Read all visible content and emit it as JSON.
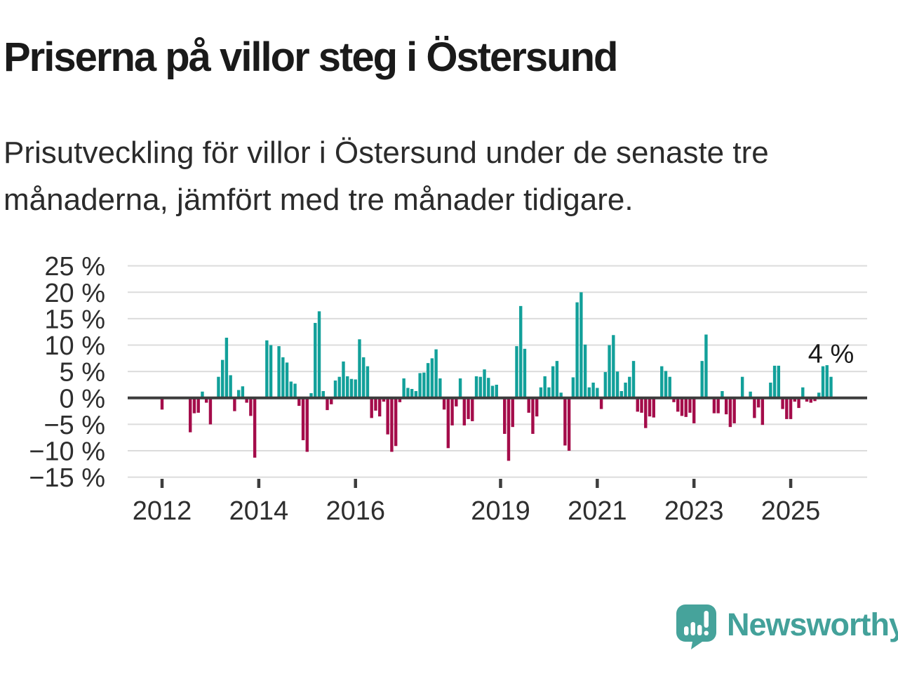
{
  "header": {
    "title": "Priserna på villor steg i Östersund",
    "subtitle": "Prisutveckling för villor i Östersund under de senaste tre\nmånaderna, jämfört med tre månader tidigare."
  },
  "chart_data": {
    "type": "bar",
    "unit": "%",
    "x_monthly_start": "2012-01",
    "x_monthly_end": "2025-11",
    "ylim": [
      -15,
      25
    ],
    "grid": true,
    "yticks": [
      25,
      20,
      15,
      10,
      5,
      0,
      -5,
      -10,
      -15
    ],
    "ytick_labels": [
      "25 %",
      "20 %",
      "15 %",
      "10 %",
      "5 %",
      "0 %",
      "−5 %",
      "−10 %",
      "−15 %"
    ],
    "xticks": [
      {
        "label": "2012",
        "index": 0
      },
      {
        "label": "2014",
        "index": 24
      },
      {
        "label": "2016",
        "index": 48
      },
      {
        "label": "2019",
        "index": 84
      },
      {
        "label": "2021",
        "index": 108
      },
      {
        "label": "2023",
        "index": 132
      },
      {
        "label": "2025",
        "index": 156
      }
    ],
    "annotation": {
      "text": "4 %",
      "index": 166,
      "value": 4
    },
    "colors": {
      "positive": "#12a09a",
      "negative": "#a40c4a",
      "grid": "#dcdcdc",
      "axis": "#3d3d3d",
      "tick_text": "#2e2e2e"
    },
    "values": [
      -2.2,
      0,
      0,
      0,
      0,
      0,
      0,
      -6.5,
      -2.9,
      -2.8,
      1.2,
      -0.9,
      -5.0,
      0,
      4.0,
      7.2,
      11.4,
      4.3,
      -2.5,
      1.5,
      2.2,
      -0.9,
      -3.4,
      -11.3,
      0,
      0,
      10.9,
      10.0,
      0,
      9.8,
      7.7,
      6.7,
      3.1,
      2.7,
      -1.5,
      -8.0,
      -10.2,
      0.9,
      14.2,
      16.4,
      1.3,
      -2.3,
      -1.2,
      3.3,
      4.0,
      6.9,
      4.1,
      3.6,
      3.5,
      11.1,
      7.7,
      6.0,
      -3.8,
      -2.4,
      -3.5,
      -0.7,
      -6.9,
      -10.2,
      -9.1,
      -0.8,
      3.7,
      1.9,
      1.7,
      1.3,
      4.7,
      4.8,
      6.6,
      7.5,
      9.2,
      3.7,
      -2.2,
      -9.5,
      -5.2,
      -1.6,
      3.7,
      -5.2,
      -4.0,
      -4.4,
      4.1,
      4.0,
      5.4,
      3.8,
      2.3,
      2.5,
      0,
      -6.8,
      -11.9,
      -5.5,
      9.8,
      17.4,
      9.3,
      -2.8,
      -6.8,
      -3.5,
      2.0,
      4.1,
      2.0,
      6.0,
      7.0,
      1.0,
      -9.0,
      -10.0,
      3.9,
      18.1,
      20.0,
      10.1,
      2.0,
      2.9,
      1.9,
      -2.1,
      4.9,
      10.0,
      11.9,
      5.0,
      1.3,
      2.9,
      4.0,
      7.0,
      -2.6,
      -2.8,
      -5.7,
      -3.5,
      -3.7,
      0,
      6.0,
      5.1,
      4.0,
      -0.8,
      -2.6,
      -3.4,
      -3.6,
      -2.8,
      -4.8,
      0,
      7.0,
      12.0,
      0,
      -2.9,
      -2.9,
      1.3,
      -3.1,
      -5.5,
      -4.8,
      0,
      4.0,
      0,
      1.2,
      -3.8,
      -1.8,
      -5.1,
      0,
      2.9,
      6.1,
      6.1,
      -2.1,
      -4.0,
      -4.0,
      -0.7,
      -1.9,
      2.0,
      -0.7,
      -0.9,
      -0.6,
      1.0,
      6.0,
      6.2,
      4.0
    ]
  },
  "footer": {
    "brand": "Newsworthy",
    "brand_color": "#43a19a"
  }
}
